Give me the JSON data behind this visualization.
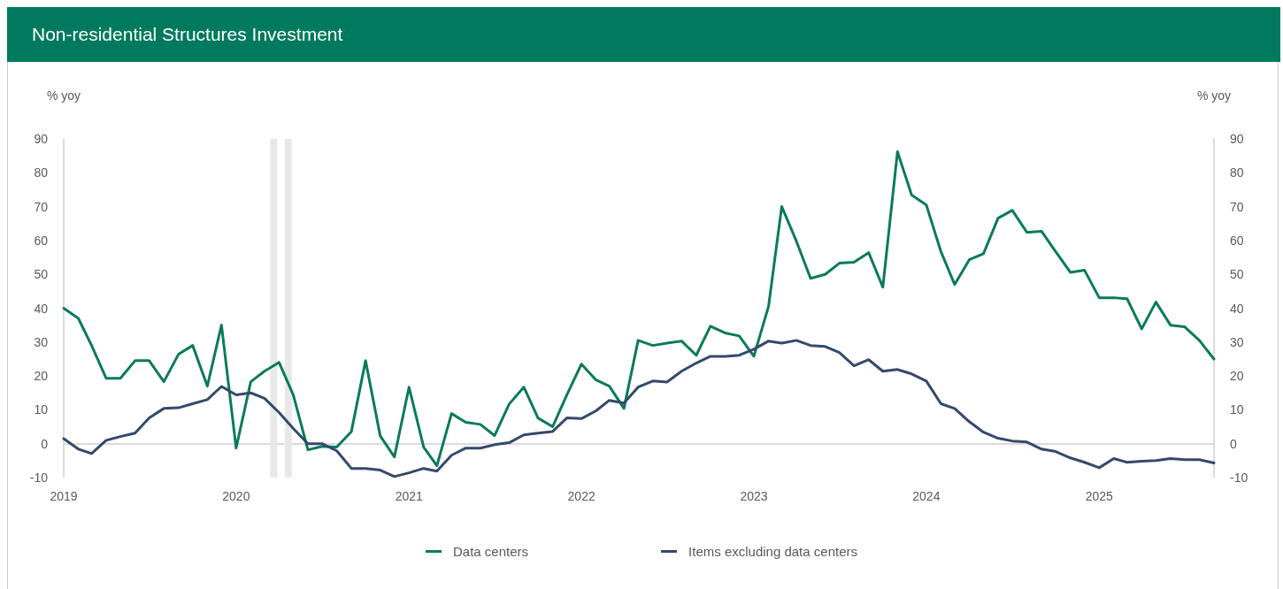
{
  "chart_data": {
    "type": "line",
    "title": "Non-residential Structures Investment",
    "ylabel": "% yoy",
    "y2label": "% yoy",
    "x": [
      "2019-01",
      "2019-02",
      "2019-03",
      "2019-04",
      "2019-05",
      "2019-06",
      "2019-07",
      "2019-08",
      "2019-09",
      "2019-10",
      "2019-11",
      "2019-12",
      "2020-01",
      "2020-02",
      "2020-03",
      "2020-04",
      "2020-05",
      "2020-06",
      "2020-07",
      "2020-08",
      "2020-09",
      "2020-10",
      "2020-11",
      "2020-12",
      "2021-01",
      "2021-02",
      "2021-03",
      "2021-04",
      "2021-05",
      "2021-06",
      "2021-07",
      "2021-08",
      "2021-09",
      "2021-10",
      "2021-11",
      "2021-12",
      "2022-01",
      "2022-02",
      "2022-03",
      "2022-04",
      "2022-05",
      "2022-06",
      "2022-07",
      "2022-08",
      "2022-09",
      "2022-10",
      "2022-11",
      "2022-12",
      "2023-01",
      "2023-02",
      "2023-03",
      "2023-04",
      "2023-05",
      "2023-06",
      "2023-07",
      "2023-08",
      "2023-09",
      "2023-10",
      "2023-11",
      "2023-12",
      "2024-01",
      "2024-02",
      "2024-03",
      "2024-04",
      "2024-05",
      "2024-06",
      "2024-07",
      "2024-08",
      "2024-09",
      "2024-10",
      "2024-11",
      "2024-12",
      "2025-01",
      "2025-02",
      "2025-03",
      "2025-04",
      "2025-05",
      "2025-06",
      "2025-07",
      "2025-08",
      "2025-09"
    ],
    "series": [
      {
        "name": "Data centers",
        "color": "#0b7a5c",
        "values": [
          40,
          37,
          29,
          19.3,
          19.3,
          24.5,
          24.5,
          18.3,
          26.4,
          29,
          17,
          35,
          -1.3,
          18.3,
          21.4,
          24,
          14.4,
          -1.8,
          -0.8,
          -1,
          3.6,
          24.5,
          2.3,
          -3.9,
          16.7,
          -1,
          -6.5,
          8.9,
          6.3,
          5.7,
          2.4,
          11.7,
          16.7,
          7.6,
          5,
          14.4,
          23.5,
          18.8,
          17,
          10.4,
          30.5,
          29,
          29.7,
          30.3,
          26.1,
          34.7,
          32.7,
          31.8,
          25.8,
          40.5,
          70,
          59.8,
          48.8,
          50,
          53.3,
          53.6,
          56.4,
          46.2,
          86.2,
          73.4,
          70.5,
          56.7,
          47,
          54.3,
          56.1,
          66.6,
          68.9,
          62.4,
          62.7,
          56.7,
          50.6,
          51.2,
          43.1,
          43.1,
          42.8,
          33.9,
          41.8,
          35,
          34.5,
          30.5,
          25
        ]
      },
      {
        "name": "Items excluding data centers",
        "color": "#34496b",
        "values": [
          1.5,
          -1.6,
          -2.9,
          1,
          2.1,
          3.1,
          7.6,
          10.4,
          10.6,
          11.8,
          13,
          16.9,
          14.4,
          15,
          13.4,
          9.2,
          4.5,
          0,
          0,
          -2.1,
          -7.3,
          -7.3,
          -7.8,
          -9.7,
          -8.6,
          -7.3,
          -8.1,
          -3.4,
          -1.3,
          -1.3,
          -0.3,
          0.3,
          2.6,
          3.1,
          3.6,
          7.6,
          7.4,
          9.7,
          12.8,
          12,
          16.7,
          18.5,
          18.2,
          21.4,
          23.8,
          25.8,
          25.8,
          26.1,
          27.9,
          30.3,
          29.7,
          30.5,
          29,
          28.7,
          26.9,
          23,
          24.8,
          21.4,
          21.9,
          20.6,
          18.5,
          11.8,
          10.4,
          6.5,
          3.4,
          1.6,
          0.8,
          0.5,
          -1.6,
          -2.3,
          -4.2,
          -5.5,
          -7.1,
          -4.4,
          -5.5,
          -5.2,
          -5,
          -4.4,
          -4.7,
          -4.7,
          -5.7
        ]
      }
    ],
    "xlim": [
      "2019-01",
      "2025-09"
    ],
    "xticks": [
      {
        "value": "2019",
        "label": "2019"
      },
      {
        "value": "2020",
        "label": "2020"
      },
      {
        "value": "2021",
        "label": "2021"
      },
      {
        "value": "2022",
        "label": "2022"
      },
      {
        "value": "2023",
        "label": "2023"
      },
      {
        "value": "2024",
        "label": "2024"
      },
      {
        "value": "2025",
        "label": "2025"
      }
    ],
    "ylim": [
      -10,
      90
    ],
    "yticks": [
      -10,
      0,
      10,
      20,
      30,
      40,
      50,
      60,
      70,
      80,
      90
    ],
    "y2lim": [
      -10,
      90
    ],
    "y2ticks": [
      -10,
      0,
      10,
      20,
      30,
      40,
      50,
      60,
      70,
      80,
      90
    ],
    "bands": [
      {
        "axis": "x",
        "from": "2020-03-13",
        "to": "2020-03-28",
        "color": "#e8e8e8"
      },
      {
        "axis": "x",
        "from": "2020-04-13",
        "to": "2020-04-28",
        "color": "#e8e8e8"
      }
    ],
    "legend": "bottom",
    "marker": "none",
    "line_style": "solid"
  }
}
